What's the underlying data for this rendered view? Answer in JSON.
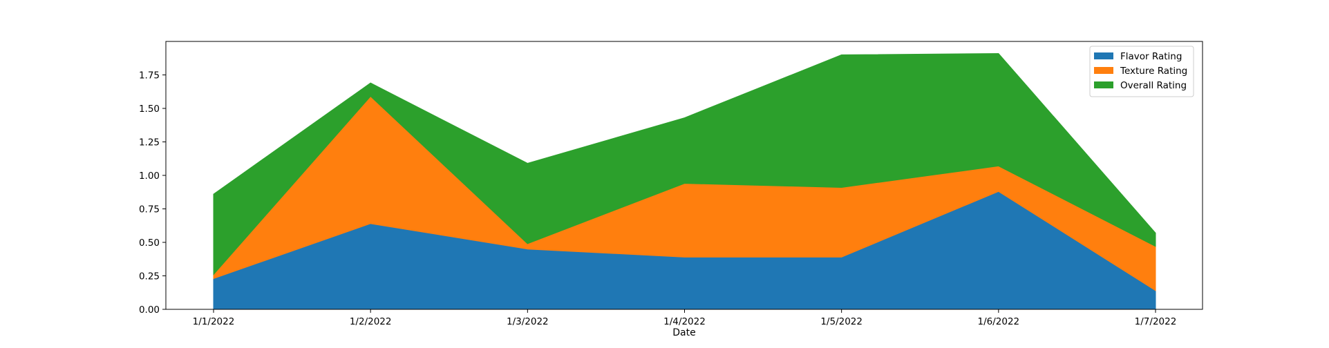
{
  "chart_data": {
    "type": "area",
    "stacked": true,
    "title": "",
    "xlabel": "Date",
    "ylabel": "",
    "categories": [
      "1/1/2022",
      "1/2/2022",
      "1/3/2022",
      "1/4/2022",
      "1/5/2022",
      "1/6/2022",
      "1/7/2022"
    ],
    "ylim": [
      0,
      2.0
    ],
    "yticks": [
      "0.00",
      "0.25",
      "0.50",
      "0.75",
      "1.00",
      "1.25",
      "1.50",
      "1.75"
    ],
    "grid": false,
    "legend_position": "top-right",
    "series": [
      {
        "name": "Flavor Rating",
        "color": "#1f77b4",
        "values": [
          0.23,
          0.64,
          0.45,
          0.39,
          0.39,
          0.88,
          0.14
        ]
      },
      {
        "name": "Texture Rating",
        "color": "#ff7f0e",
        "values": [
          0.03,
          0.95,
          0.04,
          0.55,
          0.52,
          0.19,
          0.33
        ]
      },
      {
        "name": "Overall Rating",
        "color": "#2ca02c",
        "values": [
          0.6,
          0.1,
          0.6,
          0.49,
          0.99,
          0.84,
          0.1
        ]
      }
    ]
  }
}
